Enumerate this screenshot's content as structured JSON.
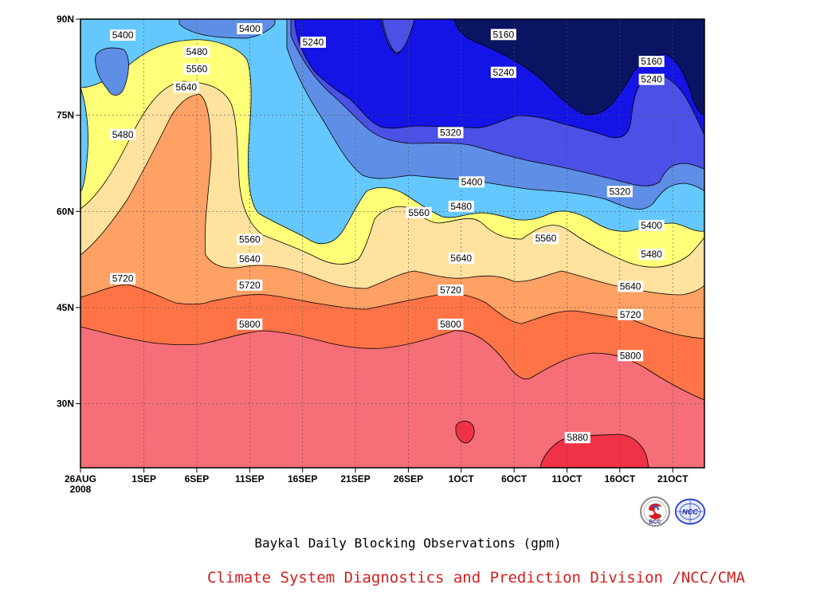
{
  "chart_data": {
    "type": "heatmap",
    "subtype": "filled-contour",
    "title": "Baykal Daily Blocking Observations (gpm)",
    "xlabel": "",
    "ylabel": "",
    "x_ticks": [
      "26AUG\n2008",
      "1SEP",
      "6SEP",
      "11SEP",
      "16SEP",
      "21SEP",
      "26SEP",
      "1OCT",
      "6OCT",
      "11OCT",
      "16OCT",
      "21OCT"
    ],
    "x_range": [
      "2008-08-26",
      "2008-10-24"
    ],
    "y_ticks": [
      "30N",
      "45N",
      "60N",
      "75N",
      "90N"
    ],
    "y_range": [
      20,
      90
    ],
    "grid": true,
    "contour_levels": [
      5160,
      5240,
      5320,
      5400,
      5480,
      5560,
      5640,
      5720,
      5800,
      5880
    ],
    "level_colors": [
      "#0a1463",
      "#1414e6",
      "#4b50e6",
      "#5f8ee6",
      "#64c8ff",
      "#ffff78",
      "#ffe29e",
      "#ffa064",
      "#ff7346",
      "#f56e78",
      "#f03246"
    ],
    "contour_labels": [
      {
        "value": "5400",
        "date": "2008-08-30",
        "lat": 87.5
      },
      {
        "value": "5480",
        "date": "2008-08-30",
        "lat": 72.0
      },
      {
        "value": "5720",
        "date": "2008-08-30",
        "lat": 49.5
      },
      {
        "value": "5480",
        "date": "2008-09-06",
        "lat": 84.9
      },
      {
        "value": "5560",
        "date": "2008-09-06",
        "lat": 82.2
      },
      {
        "value": "5640",
        "date": "2008-09-05",
        "lat": 79.4
      },
      {
        "value": "5400",
        "date": "2008-09-11",
        "lat": 88.5
      },
      {
        "value": "5560",
        "date": "2008-09-11",
        "lat": 55.6
      },
      {
        "value": "5640",
        "date": "2008-09-11",
        "lat": 52.6
      },
      {
        "value": "5720",
        "date": "2008-09-11",
        "lat": 48.5
      },
      {
        "value": "5800",
        "date": "2008-09-11",
        "lat": 42.4
      },
      {
        "value": "5240",
        "date": "2008-09-17",
        "lat": 86.4
      },
      {
        "value": "5560",
        "date": "2008-09-27",
        "lat": 59.8
      },
      {
        "value": "5320",
        "date": "2008-09-30",
        "lat": 72.3
      },
      {
        "value": "5400",
        "date": "2008-10-02",
        "lat": 64.6
      },
      {
        "value": "5480",
        "date": "2008-10-01",
        "lat": 60.8
      },
      {
        "value": "5640",
        "date": "2008-10-01",
        "lat": 52.7
      },
      {
        "value": "5720",
        "date": "2008-09-30",
        "lat": 47.7
      },
      {
        "value": "5800",
        "date": "2008-09-30",
        "lat": 42.4
      },
      {
        "value": "5160",
        "date": "2008-10-05",
        "lat": 87.6
      },
      {
        "value": "5240",
        "date": "2008-10-05",
        "lat": 81.7
      },
      {
        "value": "5560",
        "date": "2008-10-09",
        "lat": 55.8
      },
      {
        "value": "5880",
        "date": "2008-10-12",
        "lat": 24.7
      },
      {
        "value": "5320",
        "date": "2008-10-16",
        "lat": 63.1
      },
      {
        "value": "5160",
        "date": "2008-10-19",
        "lat": 83.4
      },
      {
        "value": "5240",
        "date": "2008-10-19",
        "lat": 80.6
      },
      {
        "value": "5400",
        "date": "2008-10-19",
        "lat": 57.8
      },
      {
        "value": "5480",
        "date": "2008-10-19",
        "lat": 53.3
      },
      {
        "value": "5640",
        "date": "2008-10-17",
        "lat": 48.3
      },
      {
        "value": "5720",
        "date": "2008-10-17",
        "lat": 43.9
      },
      {
        "value": "5800",
        "date": "2008-10-17",
        "lat": 37.5
      }
    ]
  },
  "footer": {
    "title": "Baykal Daily Blocking Observations (gpm)",
    "credit": "Climate System Diagnostics and Prediction Division /NCC/CMA",
    "logo_left_text": "BCC",
    "logo_right_text": "NCC"
  },
  "icons": [
    "bcc-logo-icon",
    "ncc-logo-icon"
  ]
}
